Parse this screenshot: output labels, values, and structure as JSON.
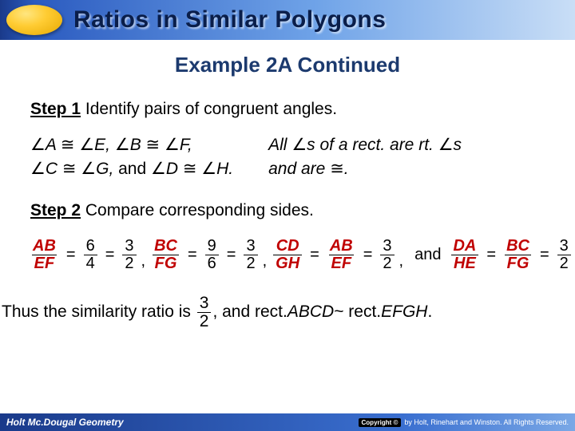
{
  "header": {
    "title": "Ratios in Similar Polygons",
    "bg_gradient": [
      "#1a3a8a",
      "#c9def6"
    ],
    "oval_color": "#ffcc33"
  },
  "subtitle": "Example 2A Continued",
  "step1": {
    "label": "Step 1",
    "text": "Identify pairs of congruent angles."
  },
  "angles": {
    "line1_left": "∠A ≅ ∠E, ∠B ≅ ∠F,",
    "line2_left": "∠C ≅ ∠G, and ∠D ≅ ∠H.",
    "line1_right": "All ∠s of a rect. are rt. ∠s",
    "line2_right": "and are ≅."
  },
  "step2": {
    "label": "Step 2",
    "text": "Compare corresponding sides."
  },
  "ratios": {
    "r1": {
      "num": "AB",
      "den": "EF",
      "v1n": "6",
      "v1d": "4",
      "v2n": "3",
      "v2d": "2"
    },
    "r2": {
      "num": "BC",
      "den": "FG",
      "v1n": "9",
      "v1d": "6",
      "v2n": "3",
      "v2d": "2"
    },
    "r3": {
      "numL": "CD",
      "denL": "GH",
      "numR": "AB",
      "denR": "EF",
      "vn": "3",
      "vd": "2"
    },
    "r4": {
      "numL": "DA",
      "denL": "HE",
      "numR": "BC",
      "denR": "FG",
      "vn": "3",
      "vd": "2"
    },
    "and": "and"
  },
  "conclusion": {
    "pre": "Thus the similarity ratio is",
    "fn": "3",
    "fd": "2",
    "post_a": ", and rect. ",
    "abcd": "ABCD",
    "tilde": " ~ rect. ",
    "efgh": "EFGH",
    "end": "."
  },
  "footer": {
    "left": "Holt Mc.Dougal Geometry",
    "badge": "Copyright ©",
    "right": "by Holt, Rinehart and Winston. All Rights Reserved."
  },
  "colors": {
    "title_text": "#0a1e4a",
    "subtitle_text": "#1c3a6e",
    "ratio_var": "#c00000"
  }
}
